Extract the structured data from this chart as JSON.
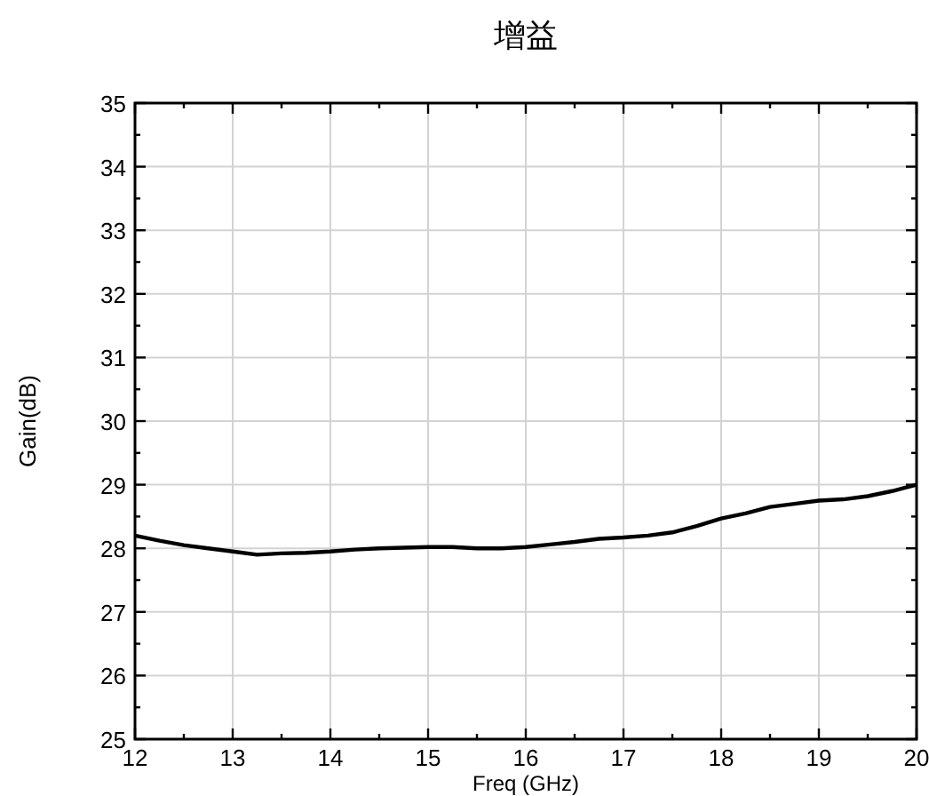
{
  "chart_data": {
    "type": "line",
    "title": "增益",
    "xlabel": "Freq (GHz)",
    "ylabel": "Gain(dB)",
    "xlim": [
      12,
      20
    ],
    "ylim": [
      25,
      35
    ],
    "xticks": [
      12,
      {
        "value": 12.5,
        "label": null
      },
      13,
      {
        "value": 13.5,
        "label": null
      },
      14,
      {
        "value": 14.5,
        "label": null
      },
      15,
      {
        "value": 15.5,
        "label": null
      },
      16,
      {
        "value": 16.5,
        "label": null
      },
      17,
      {
        "value": 17.5,
        "label": null
      },
      18,
      {
        "value": 18.5,
        "label": null
      },
      19,
      {
        "value": 19.5,
        "label": null
      },
      20
    ],
    "yticks": [
      25,
      {
        "value": 25.5,
        "label": null
      },
      26,
      {
        "value": 26.5,
        "label": null
      },
      27,
      {
        "value": 27.5,
        "label": null
      },
      28,
      {
        "value": 28.5,
        "label": null
      },
      29,
      {
        "value": 29.5,
        "label": null
      },
      30,
      {
        "value": 30.5,
        "label": null
      },
      31,
      {
        "value": 31.5,
        "label": null
      },
      32,
      {
        "value": 32.5,
        "label": null
      },
      33,
      {
        "value": 33.5,
        "label": null
      },
      34,
      {
        "value": 34.5,
        "label": null
      },
      35
    ],
    "grid": true,
    "marker": "none",
    "line_style": "solid",
    "x": [
      12,
      12.25,
      12.5,
      12.75,
      13,
      13.25,
      13.5,
      13.75,
      14,
      14.25,
      14.5,
      14.75,
      15,
      15.25,
      15.5,
      15.75,
      16,
      16.25,
      16.5,
      16.75,
      17,
      17.25,
      17.5,
      17.75,
      18,
      18.25,
      18.5,
      18.75,
      19,
      19.25,
      19.5,
      19.75,
      20
    ],
    "series": [
      {
        "color": "#000000",
        "values": [
          28.2,
          28.12,
          28.05,
          28.0,
          27.95,
          27.9,
          27.92,
          27.93,
          27.95,
          27.98,
          28.0,
          28.01,
          28.02,
          28.02,
          28.0,
          28.0,
          28.02,
          28.06,
          28.1,
          28.15,
          28.17,
          28.2,
          28.25,
          28.35,
          28.47,
          28.55,
          28.65,
          28.7,
          28.75,
          28.77,
          28.82,
          28.9,
          29.0
        ]
      }
    ]
  }
}
